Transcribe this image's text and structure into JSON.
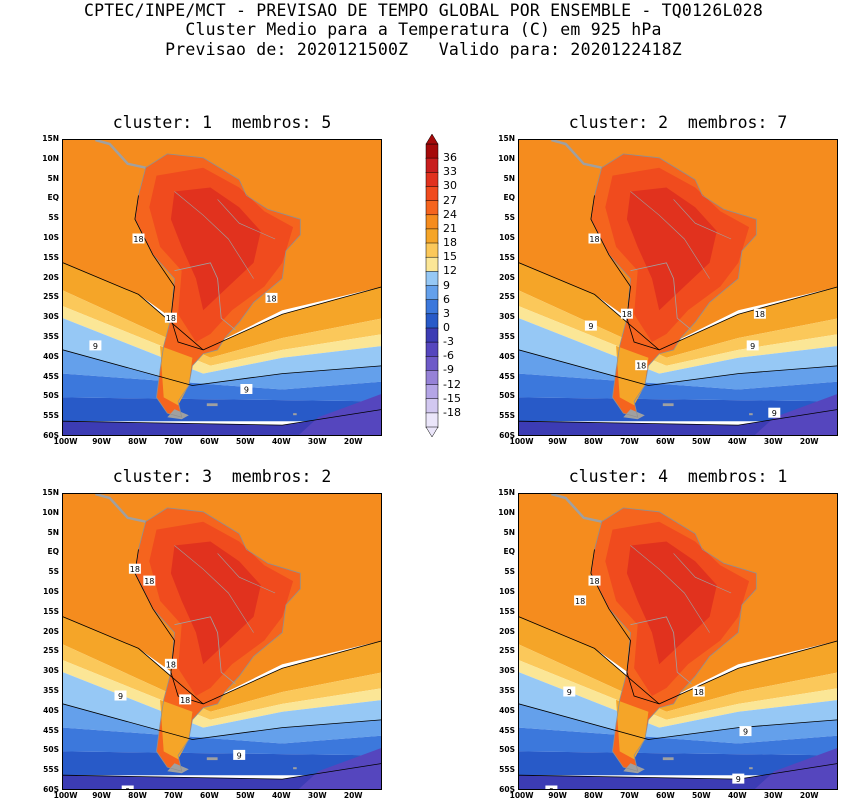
{
  "header": {
    "line1": "CPTEC/INPE/MCT - PREVISAO DE TEMPO GLOBAL POR ENSEMBLE - TQ0126L028",
    "line2": "Cluster Medio para a Temperatura (C) em 925 hPa",
    "line3": "Previsao de: 2020121500Z   Valido para: 2020122418Z"
  },
  "panels": [
    {
      "title": "cluster: 1  membros: 5",
      "contour_labels": [
        "18",
        "18",
        "18",
        "9",
        "9",
        "9"
      ]
    },
    {
      "title": "cluster: 2  membros: 7",
      "contour_labels": [
        "18",
        "18",
        "18",
        "18",
        "9",
        "9",
        "9"
      ]
    },
    {
      "title": "cluster: 3  membros: 2",
      "contour_labels": [
        "18",
        "18",
        "18",
        "18",
        "9",
        "9",
        "9"
      ]
    },
    {
      "title": "cluster: 4  membros: 1",
      "contour_labels": [
        "18",
        "18",
        "18",
        "9",
        "9",
        "9",
        "9"
      ]
    }
  ],
  "lat_labels": [
    "15N",
    "10N",
    "5N",
    "EQ",
    "5S",
    "10S",
    "15S",
    "20S",
    "25S",
    "30S",
    "35S",
    "40S",
    "45S",
    "50S",
    "55S",
    "60S"
  ],
  "lon_labels": [
    "100W",
    "90W",
    "80W",
    "70W",
    "60W",
    "50W",
    "40W",
    "30W",
    "20W"
  ],
  "colorbar": {
    "labels": [
      "36",
      "33",
      "30",
      "27",
      "24",
      "21",
      "18",
      "15",
      "12",
      "9",
      "6",
      "3",
      "0",
      "-3",
      "-6",
      "-9",
      "-12",
      "-15",
      "-18"
    ],
    "colors": [
      "#a50a0a",
      "#c81e1e",
      "#e1321e",
      "#f04b1e",
      "#f5641e",
      "#f58c1e",
      "#f5a528",
      "#fbc85a",
      "#fbe696",
      "#96c8f5",
      "#64a0eb",
      "#3c78dc",
      "#285ac8",
      "#3c3cb4",
      "#5546be",
      "#6e5ac8",
      "#9682d7",
      "#b4a5e6",
      "#d2c8f0",
      "#ebe6fa"
    ]
  }
}
